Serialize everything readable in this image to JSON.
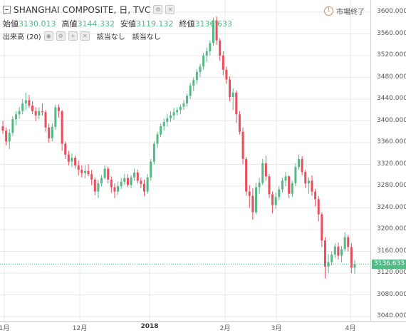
{
  "header": {
    "title": "SHANGHAI COMPOSITE, 日, TVC",
    "ohlc": [
      {
        "label": "始値",
        "value": "3130.013"
      },
      {
        "label": "高値",
        "value": "3144.332"
      },
      {
        "label": "安値",
        "value": "3119.132"
      },
      {
        "label": "終値",
        "value": "3136.633"
      }
    ],
    "indicator": {
      "name": "出来高 (20)",
      "values": [
        "該当なし",
        "該当なし"
      ]
    },
    "market_status": "市場終了",
    "icons": [
      "settings-icon",
      "close-icon"
    ]
  },
  "price_tag": "3136.633",
  "colors": {
    "up": "#53b987",
    "down": "#eb4d5c",
    "grid": "#e9e9e9"
  },
  "chart_data": {
    "type": "candlestick",
    "y_ticks": [
      "3600.000",
      "3560.000",
      "3520.000",
      "3480.000",
      "3440.000",
      "3400.000",
      "3360.000",
      "3320.000",
      "3280.000",
      "3240.000",
      "3200.000",
      "3160.000",
      "3120.000",
      "3080.000",
      "3040.000"
    ],
    "x_ticks": [
      {
        "label": "1月",
        "bold": false
      },
      {
        "label": "12月",
        "bold": false
      },
      {
        "label": "2018",
        "bold": true
      },
      {
        "label": "2月",
        "bold": false
      },
      {
        "label": "3月",
        "bold": false
      },
      {
        "label": "4月",
        "bold": false
      }
    ],
    "ylim": [
      3020,
      3620
    ],
    "last_close": 3136.633,
    "candles": [
      [
        3390,
        3400,
        3376,
        3382
      ],
      [
        3382,
        3388,
        3355,
        3362
      ],
      [
        3362,
        3385,
        3348,
        3378
      ],
      [
        3378,
        3408,
        3372,
        3403
      ],
      [
        3403,
        3418,
        3392,
        3412
      ],
      [
        3412,
        3425,
        3404,
        3418
      ],
      [
        3418,
        3440,
        3412,
        3432
      ],
      [
        3432,
        3452,
        3420,
        3438
      ],
      [
        3438,
        3448,
        3424,
        3428
      ],
      [
        3428,
        3436,
        3412,
        3418
      ],
      [
        3418,
        3425,
        3400,
        3410
      ],
      [
        3410,
        3425,
        3403,
        3418
      ],
      [
        3418,
        3432,
        3410,
        3416
      ],
      [
        3416,
        3420,
        3380,
        3388
      ],
      [
        3388,
        3395,
        3360,
        3368
      ],
      [
        3368,
        3395,
        3362,
        3389
      ],
      [
        3389,
        3430,
        3384,
        3425
      ],
      [
        3425,
        3430,
        3406,
        3418
      ],
      [
        3418,
        3420,
        3345,
        3358
      ],
      [
        3358,
        3362,
        3330,
        3338
      ],
      [
        3338,
        3345,
        3318,
        3325
      ],
      [
        3325,
        3340,
        3315,
        3332
      ],
      [
        3332,
        3336,
        3312,
        3318
      ],
      [
        3318,
        3327,
        3300,
        3310
      ],
      [
        3310,
        3318,
        3296,
        3304
      ],
      [
        3304,
        3318,
        3294,
        3308
      ],
      [
        3308,
        3320,
        3298,
        3302
      ],
      [
        3302,
        3310,
        3282,
        3292
      ],
      [
        3292,
        3296,
        3263,
        3270
      ],
      [
        3270,
        3292,
        3258,
        3285
      ],
      [
        3285,
        3300,
        3280,
        3295
      ],
      [
        3295,
        3318,
        3292,
        3312
      ],
      [
        3312,
        3316,
        3285,
        3292
      ],
      [
        3292,
        3298,
        3268,
        3278
      ],
      [
        3278,
        3285,
        3258,
        3270
      ],
      [
        3270,
        3288,
        3264,
        3280
      ],
      [
        3280,
        3295,
        3275,
        3288
      ],
      [
        3288,
        3302,
        3282,
        3295
      ],
      [
        3295,
        3302,
        3278,
        3282
      ],
      [
        3282,
        3300,
        3276,
        3296
      ],
      [
        3296,
        3312,
        3290,
        3305
      ],
      [
        3305,
        3310,
        3285,
        3290
      ],
      [
        3290,
        3296,
        3276,
        3284
      ],
      [
        3284,
        3292,
        3262,
        3270
      ],
      [
        3270,
        3302,
        3266,
        3296
      ],
      [
        3296,
        3330,
        3290,
        3325
      ],
      [
        3325,
        3362,
        3320,
        3358
      ],
      [
        3358,
        3380,
        3350,
        3375
      ],
      [
        3375,
        3395,
        3370,
        3390
      ],
      [
        3390,
        3404,
        3382,
        3398
      ],
      [
        3398,
        3412,
        3390,
        3405
      ],
      [
        3405,
        3418,
        3398,
        3410
      ],
      [
        3410,
        3424,
        3402,
        3416
      ],
      [
        3416,
        3425,
        3410,
        3420
      ],
      [
        3420,
        3430,
        3412,
        3426
      ],
      [
        3426,
        3438,
        3420,
        3432
      ],
      [
        3432,
        3450,
        3426,
        3446
      ],
      [
        3446,
        3470,
        3440,
        3465
      ],
      [
        3465,
        3480,
        3455,
        3475
      ],
      [
        3475,
        3495,
        3468,
        3490
      ],
      [
        3490,
        3505,
        3480,
        3500
      ],
      [
        3500,
        3525,
        3494,
        3520
      ],
      [
        3520,
        3535,
        3508,
        3528
      ],
      [
        3528,
        3548,
        3520,
        3543
      ],
      [
        3543,
        3590,
        3538,
        3585
      ],
      [
        3585,
        3592,
        3540,
        3548
      ],
      [
        3548,
        3552,
        3510,
        3520
      ],
      [
        3520,
        3528,
        3484,
        3494
      ],
      [
        3494,
        3500,
        3468,
        3476
      ],
      [
        3476,
        3482,
        3436,
        3444
      ],
      [
        3444,
        3460,
        3420,
        3452
      ],
      [
        3452,
        3456,
        3396,
        3412
      ],
      [
        3412,
        3418,
        3375,
        3380
      ],
      [
        3380,
        3388,
        3320,
        3330
      ],
      [
        3330,
        3334,
        3262,
        3270
      ],
      [
        3270,
        3282,
        3240,
        3262
      ],
      [
        3262,
        3276,
        3218,
        3232
      ],
      [
        3232,
        3286,
        3228,
        3278
      ],
      [
        3278,
        3295,
        3266,
        3286
      ],
      [
        3286,
        3330,
        3282,
        3322
      ],
      [
        3322,
        3336,
        3290,
        3298
      ],
      [
        3298,
        3302,
        3258,
        3265
      ],
      [
        3265,
        3270,
        3230,
        3245
      ],
      [
        3245,
        3268,
        3238,
        3260
      ],
      [
        3260,
        3280,
        3254,
        3274
      ],
      [
        3274,
        3296,
        3268,
        3290
      ],
      [
        3290,
        3306,
        3280,
        3298
      ],
      [
        3298,
        3300,
        3258,
        3266
      ],
      [
        3266,
        3290,
        3260,
        3285
      ],
      [
        3285,
        3322,
        3280,
        3315
      ],
      [
        3315,
        3338,
        3310,
        3330
      ],
      [
        3330,
        3335,
        3300,
        3306
      ],
      [
        3306,
        3310,
        3276,
        3285
      ],
      [
        3285,
        3296,
        3266,
        3290
      ],
      [
        3290,
        3300,
        3262,
        3270
      ],
      [
        3270,
        3275,
        3243,
        3256
      ],
      [
        3256,
        3262,
        3215,
        3228
      ],
      [
        3228,
        3232,
        3168,
        3180
      ],
      [
        3180,
        3186,
        3110,
        3132
      ],
      [
        3132,
        3155,
        3120,
        3140
      ],
      [
        3140,
        3160,
        3134,
        3154
      ],
      [
        3154,
        3175,
        3148,
        3169
      ],
      [
        3169,
        3176,
        3145,
        3152
      ],
      [
        3152,
        3170,
        3140,
        3164
      ],
      [
        3164,
        3195,
        3160,
        3186
      ],
      [
        3186,
        3190,
        3160,
        3168
      ],
      [
        3168,
        3175,
        3120,
        3130
      ],
      [
        3130,
        3144,
        3119,
        3136.633
      ]
    ]
  }
}
